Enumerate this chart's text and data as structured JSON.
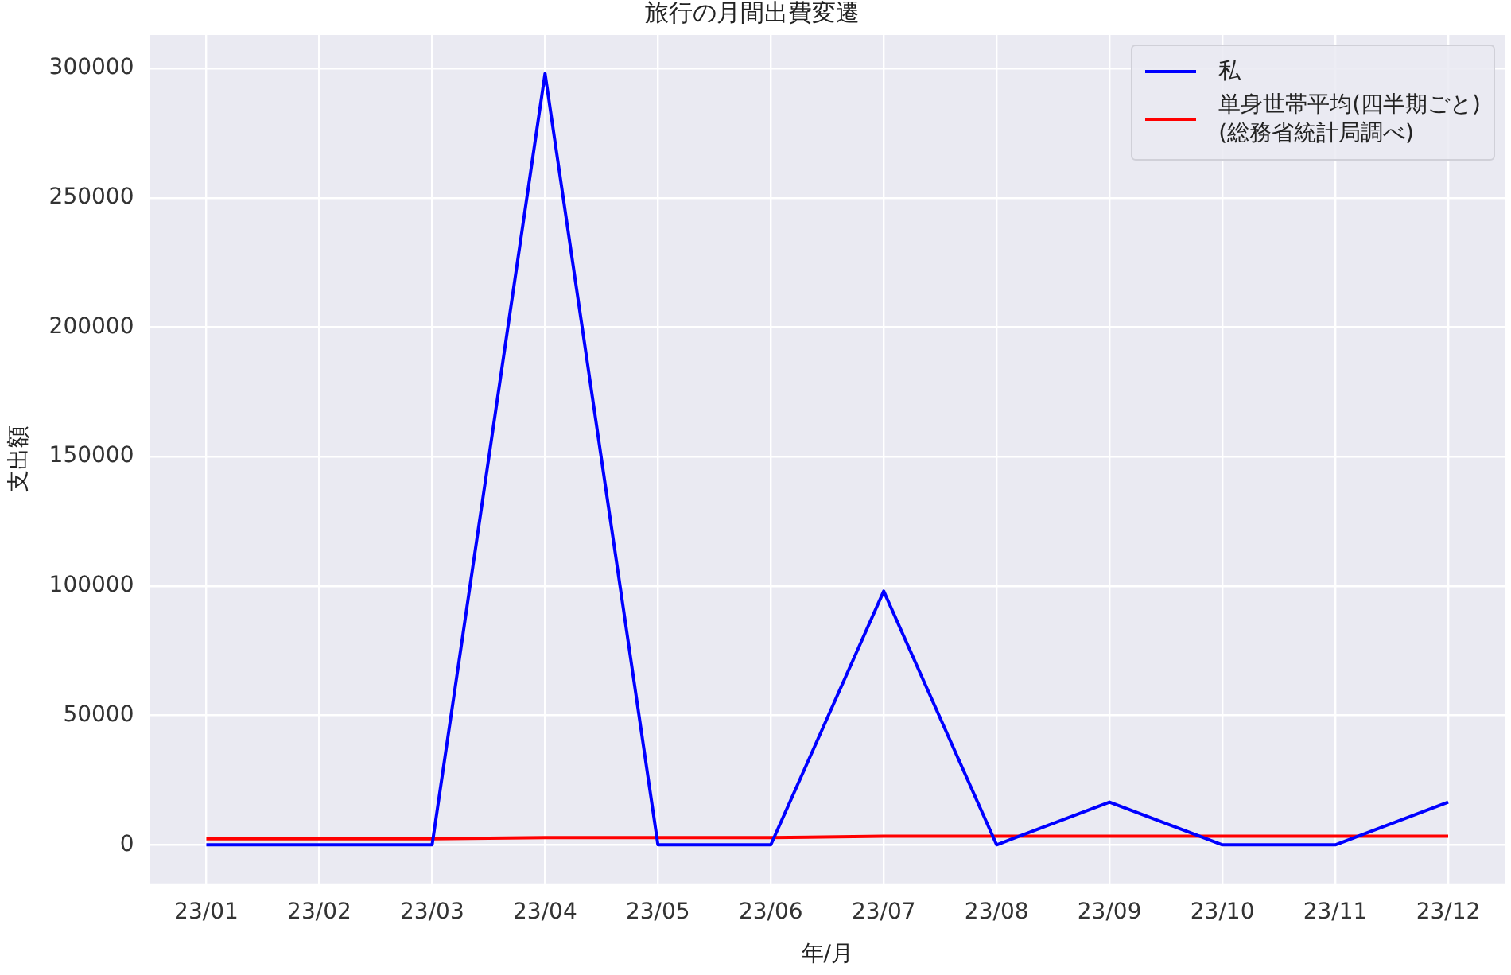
{
  "chart_data": {
    "type": "line",
    "title": "旅行の月間出費変遷",
    "xlabel": "年/月",
    "ylabel": "支出額",
    "categories": [
      "23/01",
      "23/02",
      "23/03",
      "23/04",
      "23/05",
      "23/06",
      "23/07",
      "23/08",
      "23/09",
      "23/10",
      "23/11",
      "23/12"
    ],
    "series": [
      {
        "name": "私",
        "color": "#0000ff",
        "values": [
          0,
          0,
          0,
          298000,
          0,
          0,
          98000,
          0,
          16500,
          0,
          0,
          16500
        ]
      },
      {
        "name": "単身世帯平均(四半期ごと)\n(総務省統計局調べ)",
        "color": "#ff0000",
        "values": [
          2300,
          2300,
          2300,
          2800,
          2800,
          2800,
          3300,
          3300,
          3300,
          3300,
          3300,
          3300
        ]
      }
    ],
    "ylim": [
      -14900,
      312900
    ],
    "yticks": [
      0,
      50000,
      100000,
      150000,
      200000,
      250000,
      300000
    ],
    "grid": true,
    "legend": "top right",
    "marker": "none",
    "line_style": "solid"
  }
}
